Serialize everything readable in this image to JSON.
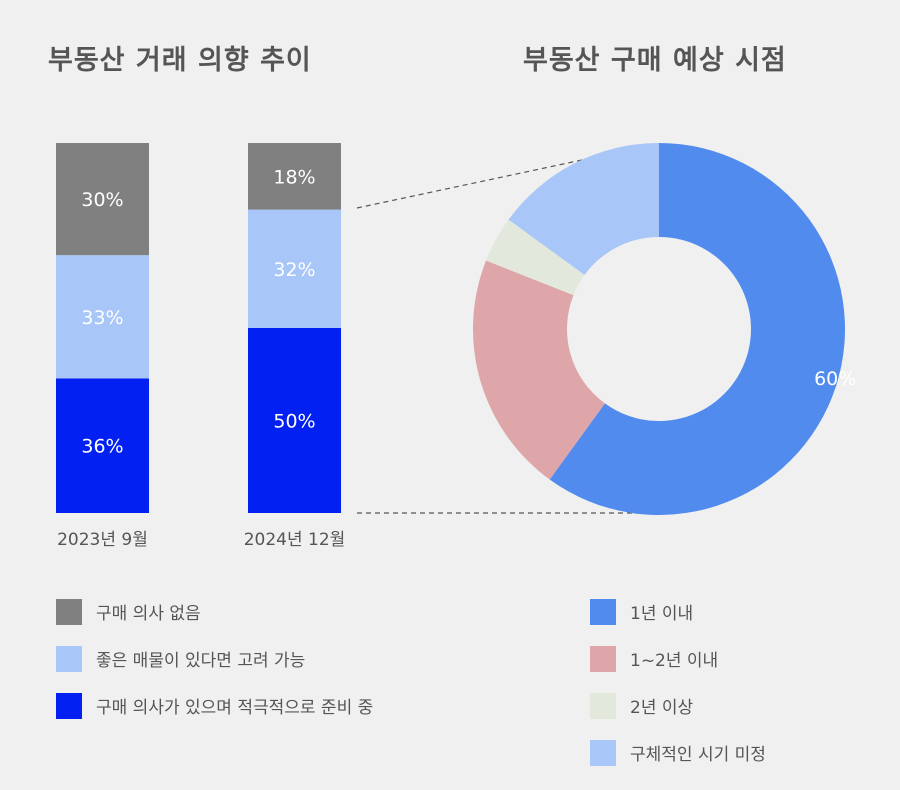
{
  "chart_data": [
    {
      "type": "bar",
      "stacked": true,
      "title": "부동산 거래 의향 추이",
      "categories": [
        "2023년 9월",
        "2024년 12월"
      ],
      "series": [
        {
          "name": "구매 의사가 있으며 적극적으로 준비 중",
          "color": "#0320f2",
          "values": [
            36,
            50
          ]
        },
        {
          "name": "좋은 매물이 있다면 고려 가능",
          "color": "#a8c6f7",
          "values": [
            33,
            32
          ]
        },
        {
          "name": "구매 의사 없음",
          "color": "#808080",
          "values": [
            30,
            18
          ]
        }
      ],
      "value_suffix": "%",
      "legend": [
        "구매 의사 없음",
        "좋은 매물이 있다면 고려 가능",
        "구매 의사가 있으며 적극적으로 준비 중"
      ],
      "legend_colors": [
        "#808080",
        "#a8c6f7",
        "#0320f2"
      ]
    },
    {
      "type": "pie",
      "donut": true,
      "title": "부동산 구매 예상 시점",
      "labels": [
        "1년 이내",
        "1~2년 이내",
        "2년 이상",
        "구체적인 시기 미정"
      ],
      "values": [
        60,
        21,
        4,
        15
      ],
      "colors": [
        "#518bee",
        "#dfa6aa",
        "#e2e9dc",
        "#a8c6f7"
      ],
      "shown_labels": [
        "60%",
        "",
        "",
        ""
      ]
    }
  ]
}
